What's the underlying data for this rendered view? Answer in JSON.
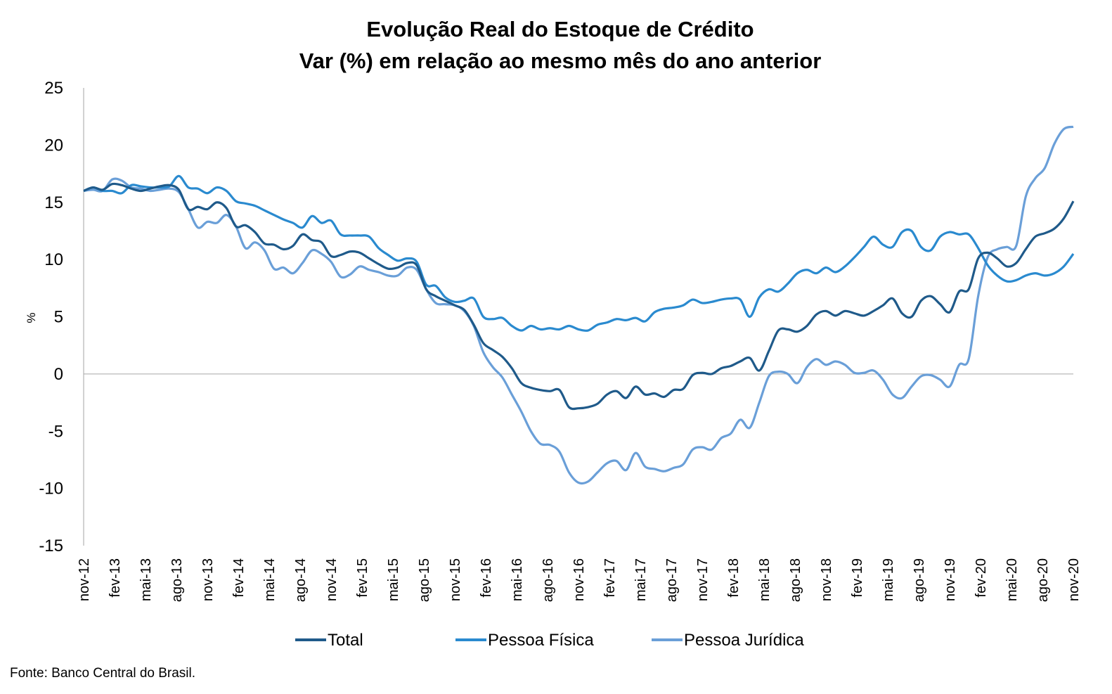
{
  "chart_data": {
    "type": "line",
    "title": "Evolução Real do Estoque de Crédito",
    "subtitle": "Var (%) em relação ao mesmo mês do ano anterior",
    "ylabel": "%",
    "xlabel": "",
    "ylim": [
      -15,
      25
    ],
    "yticks": [
      25,
      20,
      15,
      10,
      5,
      0,
      -5,
      -10,
      -15
    ],
    "x_ticks": [
      "nov-12",
      "fev-13",
      "mai-13",
      "ago-13",
      "nov-13",
      "fev-14",
      "mai-14",
      "ago-14",
      "nov-14",
      "fev-15",
      "mai-15",
      "ago-15",
      "nov-15",
      "fev-16",
      "mai-16",
      "ago-16",
      "nov-16",
      "fev-17",
      "mai-17",
      "ago-17",
      "nov-17",
      "fev-18",
      "mai-18",
      "ago-18",
      "nov-18",
      "fev-19",
      "mai-19",
      "ago-19",
      "nov-19",
      "fev-20",
      "mai-20",
      "ago-20",
      "nov-20"
    ],
    "x_start": "nov-12",
    "x_end": "nov-20",
    "grid": false,
    "legend_position": "bottom",
    "series": [
      {
        "name": "Total",
        "color": "#1F5A8A",
        "values": [
          16.0,
          16.3,
          16.1,
          16.6,
          16.5,
          16.2,
          16.0,
          16.2,
          16.4,
          16.5,
          16.1,
          14.4,
          14.6,
          14.4,
          15.0,
          14.5,
          12.9,
          13.0,
          12.4,
          11.4,
          11.3,
          10.9,
          11.2,
          12.2,
          11.7,
          11.5,
          10.3,
          10.4,
          10.7,
          10.6,
          10.1,
          9.6,
          9.2,
          9.3,
          9.7,
          9.5,
          7.4,
          6.8,
          6.4,
          6.0,
          5.6,
          4.3,
          2.7,
          2.1,
          1.5,
          0.5,
          -0.8,
          -1.2,
          -1.4,
          -1.5,
          -1.4,
          -2.9,
          -3.0,
          -2.9,
          -2.6,
          -1.8,
          -1.5,
          -2.1,
          -1.1,
          -1.8,
          -1.7,
          -2.0,
          -1.4,
          -1.3,
          -0.1,
          0.1,
          0.0,
          0.5,
          0.7,
          1.1,
          1.4,
          0.3,
          2.0,
          3.8,
          3.9,
          3.7,
          4.2,
          5.2,
          5.5,
          5.1,
          5.5,
          5.3,
          5.1,
          5.5,
          6.0,
          6.6,
          5.3,
          5.0,
          6.4,
          6.8,
          6.1,
          5.4,
          7.2,
          7.4,
          10.1,
          10.6,
          10.1,
          9.4,
          9.7,
          10.9,
          12.0,
          12.3,
          12.7,
          13.6,
          15.1
        ]
      },
      {
        "name": "Pessoa Física",
        "color": "#2A8ACF",
        "values": [
          16.0,
          16.3,
          16.0,
          16.0,
          15.8,
          16.5,
          16.4,
          16.3,
          16.3,
          16.4,
          17.3,
          16.3,
          16.2,
          15.8,
          16.3,
          16.0,
          15.1,
          14.9,
          14.7,
          14.3,
          13.9,
          13.5,
          13.2,
          12.8,
          13.8,
          13.2,
          13.4,
          12.2,
          12.1,
          12.1,
          12.0,
          11.0,
          10.4,
          9.9,
          10.1,
          9.8,
          7.8,
          7.7,
          6.7,
          6.3,
          6.4,
          6.6,
          5.0,
          4.8,
          4.9,
          4.2,
          3.8,
          4.2,
          3.9,
          4.0,
          3.9,
          4.2,
          3.9,
          3.8,
          4.3,
          4.5,
          4.8,
          4.7,
          4.9,
          4.6,
          5.4,
          5.7,
          5.8,
          6.0,
          6.5,
          6.2,
          6.3,
          6.5,
          6.6,
          6.5,
          5.0,
          6.7,
          7.4,
          7.2,
          7.9,
          8.8,
          9.1,
          8.8,
          9.3,
          8.9,
          9.4,
          10.2,
          11.1,
          12.0,
          11.3,
          11.1,
          12.4,
          12.5,
          11.1,
          10.8,
          12.0,
          12.4,
          12.2,
          12.2,
          11.0,
          9.5,
          8.6,
          8.1,
          8.2,
          8.6,
          8.8,
          8.6,
          8.8,
          9.4,
          10.5
        ]
      },
      {
        "name": "Pessoa Jurídica",
        "color": "#6A9FD8",
        "values": [
          16.0,
          16.1,
          16.0,
          17.0,
          16.9,
          16.3,
          16.2,
          16.0,
          16.1,
          16.2,
          15.9,
          14.4,
          12.8,
          13.3,
          13.2,
          13.9,
          12.9,
          11.0,
          11.5,
          10.8,
          9.2,
          9.3,
          8.8,
          9.7,
          10.8,
          10.5,
          9.8,
          8.5,
          8.7,
          9.4,
          9.1,
          8.9,
          8.6,
          8.6,
          9.3,
          9.1,
          7.4,
          6.2,
          6.1,
          6.0,
          5.5,
          4.2,
          1.9,
          0.6,
          -0.3,
          -1.8,
          -3.3,
          -5.0,
          -6.1,
          -6.2,
          -6.8,
          -8.6,
          -9.5,
          -9.4,
          -8.6,
          -7.8,
          -7.6,
          -8.4,
          -6.9,
          -8.1,
          -8.3,
          -8.5,
          -8.2,
          -7.9,
          -6.6,
          -6.4,
          -6.6,
          -5.6,
          -5.2,
          -4.0,
          -4.7,
          -2.5,
          -0.2,
          0.2,
          0.0,
          -0.8,
          0.6,
          1.3,
          0.8,
          1.1,
          0.8,
          0.1,
          0.1,
          0.3,
          -0.5,
          -1.8,
          -2.1,
          -1.1,
          -0.2,
          -0.1,
          -0.5,
          -1.1,
          0.8,
          1.3,
          6.8,
          10.2,
          10.9,
          11.1,
          11.2,
          15.5,
          17.1,
          18.0,
          20.1,
          21.4,
          21.6
        ]
      }
    ]
  },
  "source_note": "Fonte: Banco Central do Brasil."
}
